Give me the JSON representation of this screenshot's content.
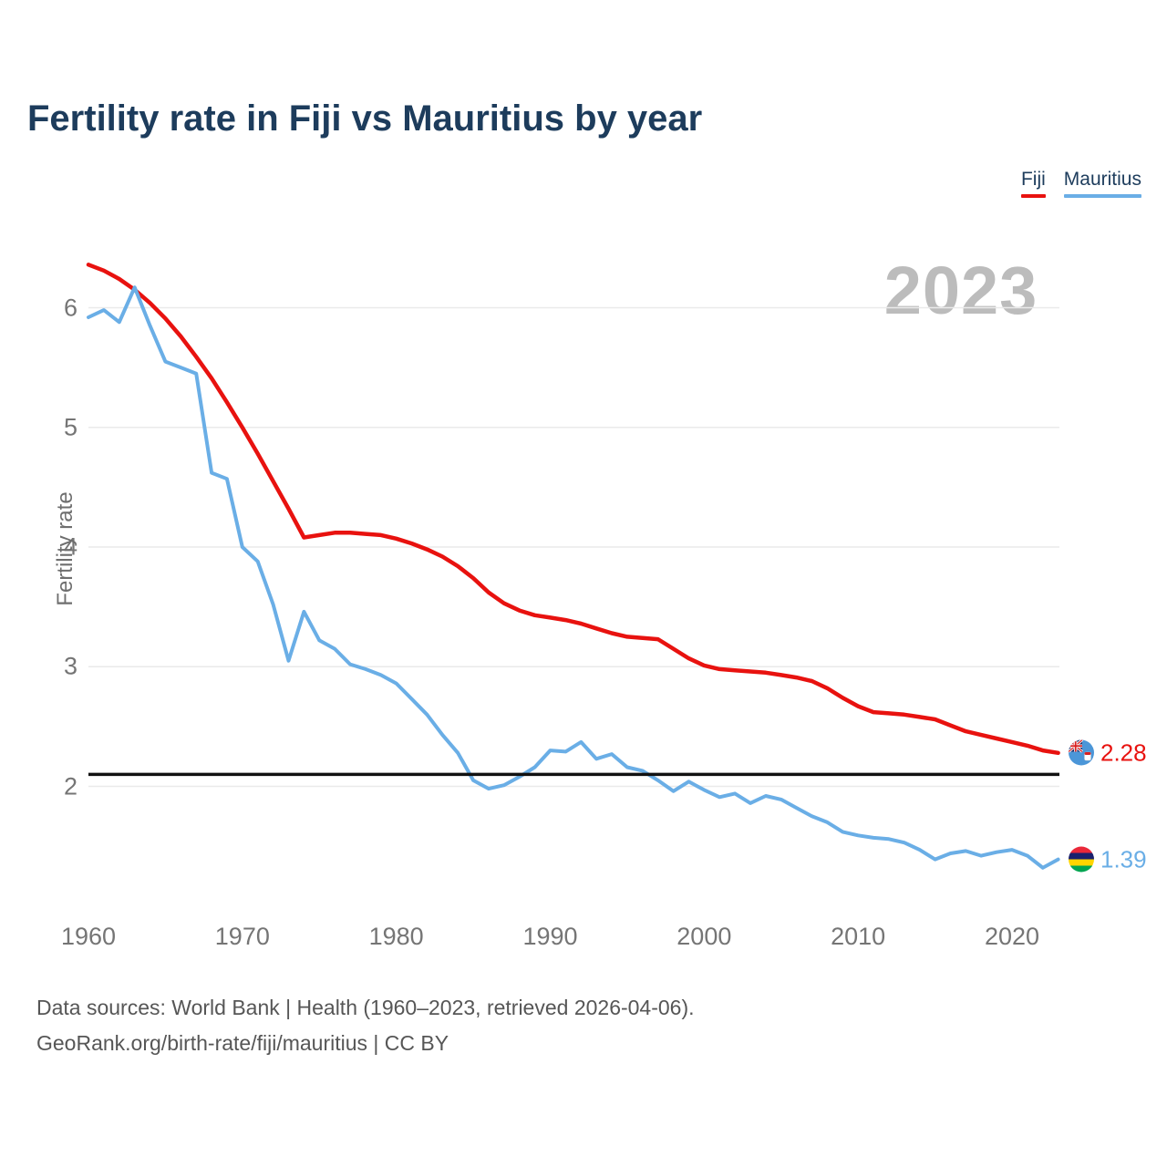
{
  "title": "Fertility rate in Fiji vs Mauritius by year",
  "legend": {
    "fiji_label": "Fiji",
    "mauritius_label": "Mauritius"
  },
  "watermark": "2023",
  "end_labels": {
    "fiji_value": "2.28",
    "mauritius_value": "1.39"
  },
  "footer": {
    "line1": "Data sources: World Bank | Health (1960–2023, retrieved 2026-04-06).",
    "line2": "GeoRank.org/birth-rate/fiji/mauritius | CC BY"
  },
  "colors": {
    "fiji": "#e8120f",
    "mauritius": "#6aaee6",
    "title": "#1d3c5c",
    "grid": "#eaeaea",
    "reference_line": "#111111",
    "tick_text": "#757575",
    "watermark": "#bcbcbc"
  },
  "chart_data": {
    "type": "line",
    "title": "Fertility rate in Fiji vs Mauritius by year",
    "xlabel": "",
    "ylabel": "Fertility rate",
    "x_start": 1960,
    "x_end": 2023,
    "x_ticks": [
      1960,
      1970,
      1980,
      1990,
      2000,
      2010,
      2020
    ],
    "y_ticks": [
      2,
      3,
      4,
      5,
      6
    ],
    "ylim": [
      1.2,
      6.5
    ],
    "grid": "horizontal",
    "legend_position": "top-right",
    "reference_line_y": 2.1,
    "series": [
      {
        "name": "Fiji",
        "color": "#e8120f",
        "end_value": 2.28,
        "values": [
          6.36,
          6.31,
          6.24,
          6.15,
          6.04,
          5.91,
          5.76,
          5.59,
          5.41,
          5.21,
          5.0,
          4.78,
          4.55,
          4.32,
          4.08,
          4.1,
          4.12,
          4.12,
          4.11,
          4.1,
          4.07,
          4.03,
          3.98,
          3.92,
          3.84,
          3.74,
          3.62,
          3.53,
          3.47,
          3.43,
          3.41,
          3.39,
          3.36,
          3.32,
          3.28,
          3.25,
          3.24,
          3.23,
          3.15,
          3.07,
          3.01,
          2.98,
          2.97,
          2.96,
          2.95,
          2.93,
          2.91,
          2.88,
          2.82,
          2.74,
          2.67,
          2.62,
          2.61,
          2.6,
          2.58,
          2.56,
          2.51,
          2.46,
          2.43,
          2.4,
          2.37,
          2.34,
          2.3,
          2.28
        ]
      },
      {
        "name": "Mauritius",
        "color": "#6aaee6",
        "end_value": 1.39,
        "values": [
          5.92,
          5.98,
          5.88,
          6.17,
          5.85,
          5.55,
          5.5,
          5.45,
          4.62,
          4.57,
          4.0,
          3.88,
          3.52,
          3.05,
          3.46,
          3.22,
          3.15,
          3.02,
          2.98,
          2.93,
          2.86,
          2.73,
          2.6,
          2.43,
          2.28,
          2.05,
          1.98,
          2.01,
          2.08,
          2.16,
          2.3,
          2.29,
          2.37,
          2.23,
          2.27,
          2.16,
          2.13,
          2.05,
          1.96,
          2.04,
          1.97,
          1.91,
          1.94,
          1.86,
          1.92,
          1.89,
          1.82,
          1.75,
          1.7,
          1.62,
          1.59,
          1.57,
          1.56,
          1.53,
          1.47,
          1.39,
          1.44,
          1.46,
          1.42,
          1.45,
          1.47,
          1.42,
          1.32,
          1.39
        ]
      }
    ]
  }
}
